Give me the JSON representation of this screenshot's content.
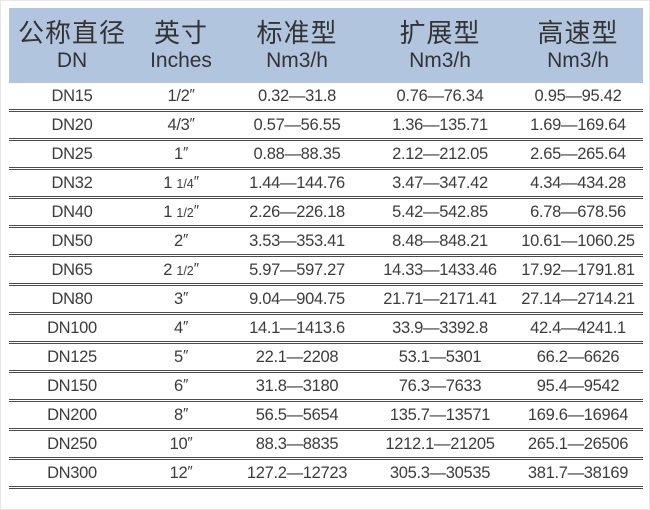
{
  "colors": {
    "header_bg": "#b2c5de",
    "row_line": "#4d4d4d",
    "body_text": "#3c3c3c",
    "header_text": "#333333"
  },
  "table": {
    "columns": [
      {
        "zh": "公称直径",
        "en": "DN"
      },
      {
        "zh": "英寸",
        "en": "Inches"
      },
      {
        "zh": "标准型",
        "en": "Nm3/h"
      },
      {
        "zh": "扩展型",
        "en": "Nm3/h"
      },
      {
        "zh": "高速型",
        "en": "Nm3/h"
      }
    ],
    "rows": [
      {
        "dn": "DN15",
        "inches": "1/2″",
        "standard": "0.32—31.8",
        "extended": "0.76—76.34",
        "high_speed": "0.95—95.42"
      },
      {
        "dn": "DN20",
        "inches": "4/3″",
        "standard": "0.57—56.55",
        "extended": "1.36—135.71",
        "high_speed": "1.69—169.64"
      },
      {
        "dn": "DN25",
        "inches": "1″",
        "standard": "0.88—88.35",
        "extended": "2.12—212.05",
        "high_speed": "2.65—265.64"
      },
      {
        "dn": "DN32",
        "inches": "1 1/4″",
        "standard": "1.44—144.76",
        "extended": "3.47—347.42",
        "high_speed": "4.34—434.28"
      },
      {
        "dn": "DN40",
        "inches": "1 1/2″",
        "standard": "2.26—226.18",
        "extended": "5.42—542.85",
        "high_speed": "6.78—678.56"
      },
      {
        "dn": "DN50",
        "inches": "2″",
        "standard": "3.53—353.41",
        "extended": "8.48—848.21",
        "high_speed": "10.61—1060.25"
      },
      {
        "dn": "DN65",
        "inches": "2 1/2″",
        "standard": "5.97—597.27",
        "extended": "14.33—1433.46",
        "high_speed": "17.92—1791.81"
      },
      {
        "dn": "DN80",
        "inches": "3″",
        "standard": "9.04—904.75",
        "extended": "21.71—2171.41",
        "high_speed": "27.14—2714.21"
      },
      {
        "dn": "DN100",
        "inches": "4″",
        "standard": "14.1—1413.6",
        "extended": "33.9—3392.8",
        "high_speed": "42.4—4241.1"
      },
      {
        "dn": "DN125",
        "inches": "5″",
        "standard": "22.1—2208",
        "extended": "53.1—5301",
        "high_speed": "66.2—6626"
      },
      {
        "dn": "DN150",
        "inches": "6″",
        "standard": "31.8—3180",
        "extended": "76.3—7633",
        "high_speed": "95.4—9542"
      },
      {
        "dn": "DN200",
        "inches": "8″",
        "standard": "56.5—5654",
        "extended": "135.7—13571",
        "high_speed": "169.6—16964"
      },
      {
        "dn": "DN250",
        "inches": "10″",
        "standard": "88.3—8835",
        "extended": "1212.1—21205",
        "high_speed": "265.1—26506"
      },
      {
        "dn": "DN300",
        "inches": "12″",
        "standard": "127.2—12723",
        "extended": "305.3—30535",
        "high_speed": "381.7—38169"
      }
    ]
  }
}
